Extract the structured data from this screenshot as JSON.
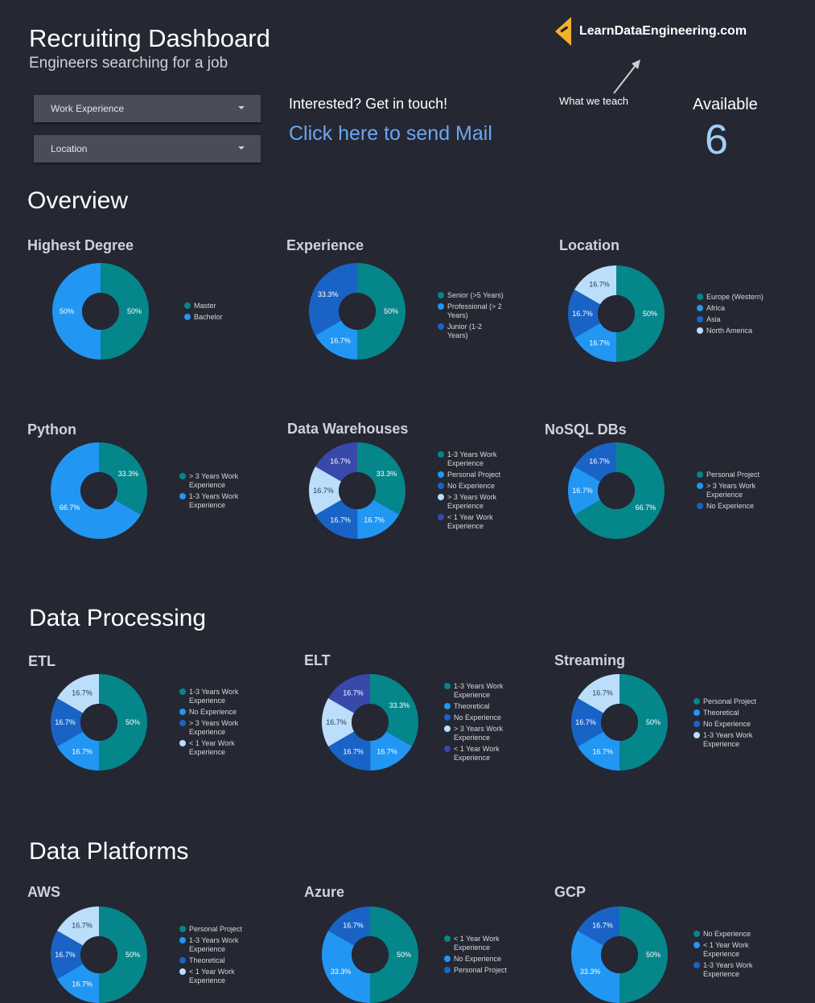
{
  "header": {
    "title": "Recruiting Dashboard",
    "subtitle": "Engineers searching for a job"
  },
  "filters": [
    {
      "label": "Work Experience"
    },
    {
      "label": "Location"
    }
  ],
  "contact": {
    "title": "Interested? Get in touch!",
    "link_text": "Click here to send Mail"
  },
  "logo": {
    "text": "LearnDataEngineering.com"
  },
  "teach_label": "What we teach",
  "available": {
    "label": "Available",
    "value": "6"
  },
  "sections": {
    "overview": "Overview",
    "processing": "Data Processing",
    "platforms": "Data Platforms"
  },
  "colors": {
    "teal": "#05868b",
    "blue": "#2196f3",
    "darkblue": "#1a63c6",
    "lightblue": "#bbdefb",
    "indigo": "#3849ab",
    "hole": "#252733",
    "text": "#e6e6e6"
  },
  "chart_data": [
    {
      "type": "pie",
      "title": "Highest Degree",
      "categories": [
        "Master",
        "Bachelor"
      ],
      "values": [
        50,
        50
      ],
      "labels": [
        "50%",
        "50%"
      ],
      "colors": [
        "teal",
        "blue"
      ]
    },
    {
      "type": "pie",
      "title": "Experience",
      "categories": [
        "Senior (>5 Years)",
        "Professional (> 2 Years)",
        "Junior (1-2 Years)"
      ],
      "values": [
        50,
        16.7,
        33.3
      ],
      "labels": [
        "50%",
        "16.7%",
        "33.3%"
      ],
      "colors": [
        "teal",
        "blue",
        "darkblue"
      ]
    },
    {
      "type": "pie",
      "title": "Location",
      "categories": [
        "Europe (Western)",
        "Africa",
        "Asia",
        "North America"
      ],
      "values": [
        50,
        16.7,
        16.7,
        16.7
      ],
      "labels": [
        "50%",
        "16.7%",
        "16.7%",
        "16.7%"
      ],
      "colors": [
        "teal",
        "blue",
        "darkblue",
        "lightblue"
      ]
    },
    {
      "type": "pie",
      "title": "Python",
      "categories": [
        "> 3 Years Work Experience",
        "1-3 Years Work Experience"
      ],
      "values": [
        33.3,
        66.7
      ],
      "labels": [
        "33.3%",
        "66.7%"
      ],
      "colors": [
        "teal",
        "blue"
      ]
    },
    {
      "type": "pie",
      "title": "Data Warehouses",
      "categories": [
        "1-3 Years Work Experience",
        "Personal Project",
        "No Experience",
        "> 3 Years Work Experience",
        "< 1 Year Work Experience"
      ],
      "values": [
        33.3,
        16.7,
        16.7,
        16.7,
        16.7
      ],
      "labels": [
        "33.3%",
        "16.7%",
        "16.7%",
        "16.7%",
        "16.7%"
      ],
      "colors": [
        "teal",
        "blue",
        "darkblue",
        "lightblue",
        "indigo"
      ]
    },
    {
      "type": "pie",
      "title": "NoSQL DBs",
      "categories": [
        "Personal Project",
        "> 3 Years Work Experience",
        "No Experience"
      ],
      "values": [
        66.7,
        16.7,
        16.7
      ],
      "labels": [
        "66.7%",
        "16.7%",
        "16.7%"
      ],
      "colors": [
        "teal",
        "blue",
        "darkblue"
      ]
    },
    {
      "type": "pie",
      "title": "ETL",
      "categories": [
        "1-3 Years Work Experience",
        "No Experience",
        "> 3 Years Work Experience",
        "< 1 Year Work Experience"
      ],
      "values": [
        50,
        16.7,
        16.7,
        16.7
      ],
      "labels": [
        "50%",
        "16.7%",
        "16.7%",
        "16.7%"
      ],
      "colors": [
        "teal",
        "blue",
        "darkblue",
        "lightblue"
      ]
    },
    {
      "type": "pie",
      "title": "ELT",
      "categories": [
        "1-3 Years Work Experience",
        "Theoretical",
        "No Experience",
        "> 3 Years Work Experience",
        "< 1 Year Work Experience"
      ],
      "values": [
        33.3,
        16.7,
        16.7,
        16.7,
        16.7
      ],
      "labels": [
        "33.3%",
        "16.7%",
        "16.7%",
        "16.7%",
        "16.7%"
      ],
      "colors": [
        "teal",
        "blue",
        "darkblue",
        "lightblue",
        "indigo"
      ]
    },
    {
      "type": "pie",
      "title": "Streaming",
      "categories": [
        "Personal Project",
        "Theoretical",
        "No Experience",
        "1-3 Years Work Experience"
      ],
      "values": [
        50,
        16.7,
        16.7,
        16.7
      ],
      "labels": [
        "50%",
        "16.7%",
        "16.7%",
        "16.7%"
      ],
      "colors": [
        "teal",
        "blue",
        "darkblue",
        "lightblue"
      ]
    },
    {
      "type": "pie",
      "title": "AWS",
      "categories": [
        "Personal Project",
        "1-3 Years Work Experience",
        "Theoretical",
        "< 1 Year Work Experience"
      ],
      "values": [
        50,
        16.7,
        16.7,
        16.7
      ],
      "labels": [
        "50%",
        "16.7%",
        "16.7%",
        "16.7%"
      ],
      "colors": [
        "teal",
        "blue",
        "darkblue",
        "lightblue"
      ]
    },
    {
      "type": "pie",
      "title": "Azure",
      "categories": [
        "< 1 Year Work Experience",
        "No Experience",
        "Personal Project"
      ],
      "values": [
        50,
        33.3,
        16.7
      ],
      "labels": [
        "50%",
        "33.3%",
        "16.7%"
      ],
      "colors": [
        "teal",
        "blue",
        "darkblue"
      ]
    },
    {
      "type": "pie",
      "title": "GCP",
      "categories": [
        "No Experience",
        "< 1 Year Work Experience",
        "1-3 Years Work Experience"
      ],
      "values": [
        50,
        33.3,
        16.7
      ],
      "labels": [
        "50%",
        "33.3%",
        "16.7%"
      ],
      "colors": [
        "teal",
        "blue",
        "darkblue"
      ]
    }
  ]
}
